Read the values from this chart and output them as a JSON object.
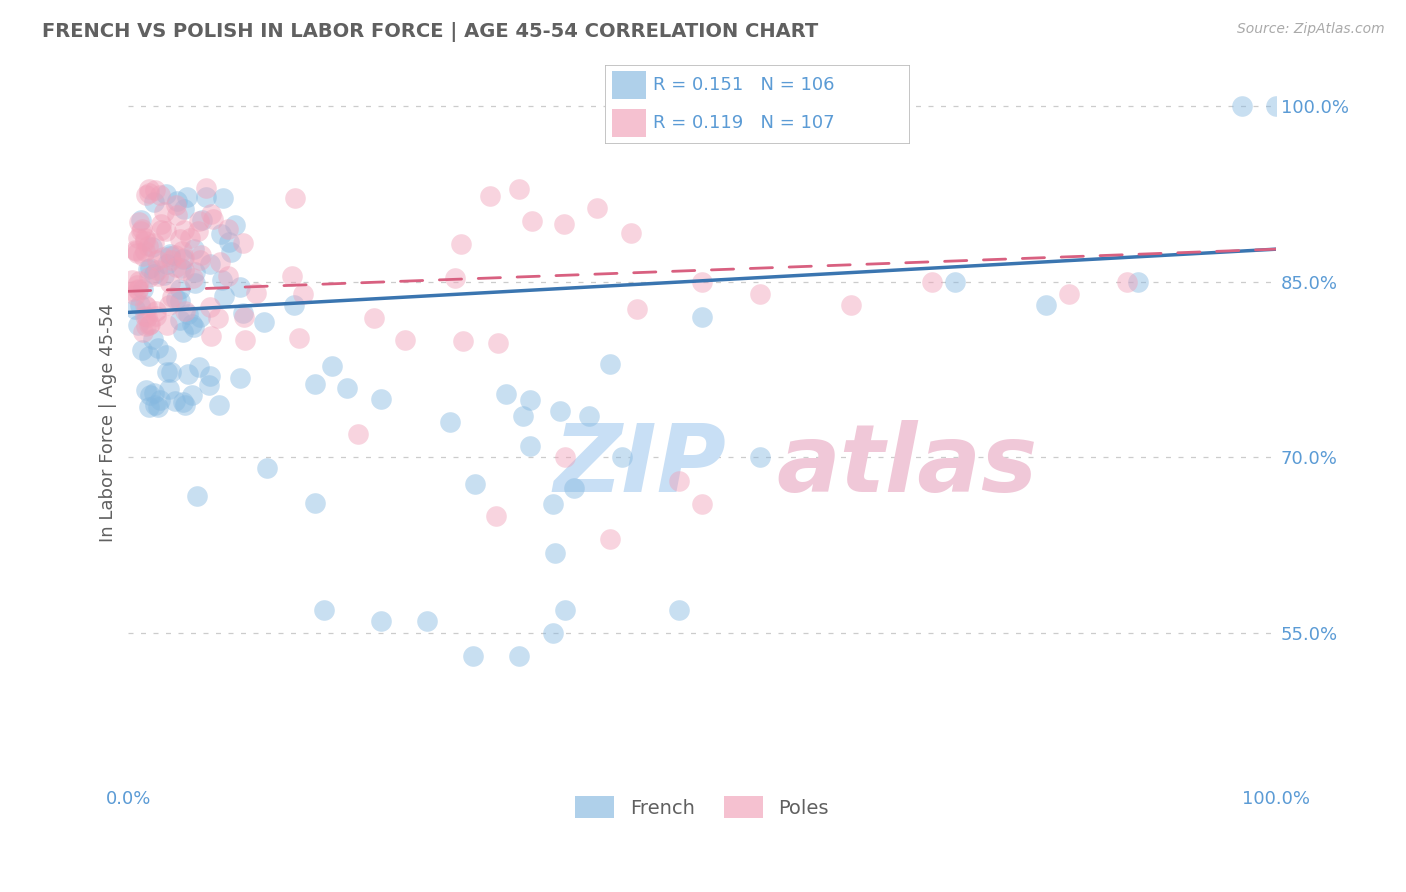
{
  "title": "FRENCH VS POLISH IN LABOR FORCE | AGE 45-54 CORRELATION CHART",
  "source_text": "Source: ZipAtlas.com",
  "ylabel": "In Labor Force | Age 45-54",
  "xlim": [
    0.0,
    1.0
  ],
  "ylim": [
    0.42,
    1.04
  ],
  "x_ticks": [
    0.0,
    1.0
  ],
  "x_tick_labels": [
    "0.0%",
    "100.0%"
  ],
  "y_ticks": [
    0.55,
    0.7,
    0.85,
    1.0
  ],
  "y_tick_labels": [
    "55.0%",
    "70.0%",
    "85.0%",
    "100.0%"
  ],
  "french_R": 0.151,
  "french_N": 106,
  "poles_R": 0.119,
  "poles_N": 107,
  "french_color": "#85b8e0",
  "poles_color": "#f0a0b8",
  "french_line_color": "#3a75b0",
  "poles_line_color": "#d86080",
  "title_color": "#606060",
  "label_color": "#5b9bd5",
  "watermark_blue": "#c8dff5",
  "watermark_pink": "#f0c8d8",
  "background_color": "#ffffff",
  "grid_color": "#cccccc",
  "legend_label_french": "French",
  "legend_label_poles": "Poles",
  "french_line_start_y": 0.824,
  "french_line_end_y": 0.878,
  "poles_line_start_y": 0.842,
  "poles_line_end_y": 0.878
}
